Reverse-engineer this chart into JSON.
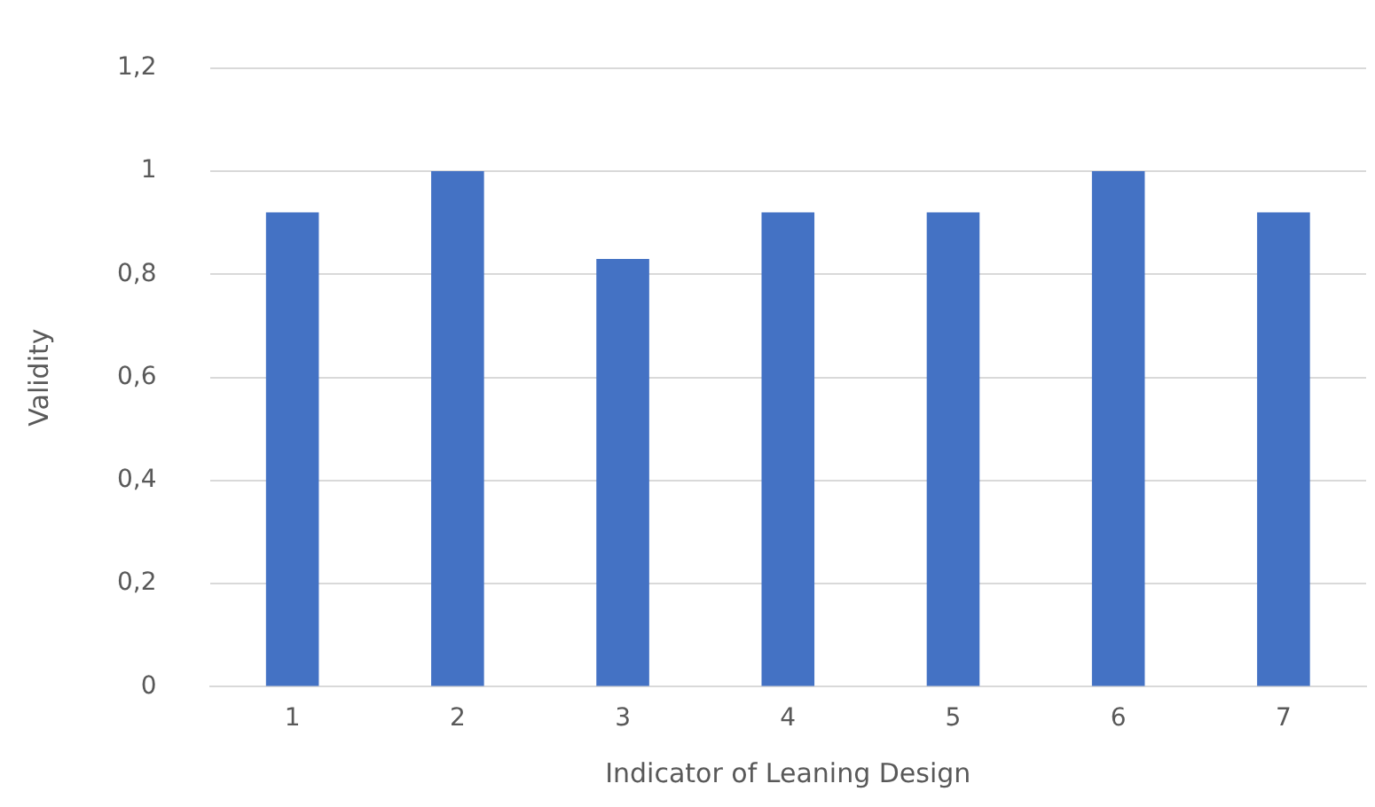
{
  "chart_data": {
    "type": "bar",
    "xlabel": "Indicator of Leaning Design",
    "ylabel": "Validity",
    "categories": [
      "1",
      "2",
      "3",
      "4",
      "5",
      "6",
      "7"
    ],
    "values": [
      0.92,
      1,
      0.83,
      0.92,
      0.92,
      1,
      0.92
    ],
    "color": "#4472c4",
    "ylim": [
      0,
      1.2
    ],
    "yticks": [
      0,
      {
        "value": 0.2,
        "label": "0,2"
      },
      {
        "value": 0.4,
        "label": "0,4"
      },
      {
        "value": 0.6,
        "label": "0,6"
      },
      {
        "value": 0.8,
        "label": "0,8"
      },
      1,
      {
        "value": 1.2,
        "label": "1,2"
      }
    ],
    "grid": "y",
    "legend": false
  }
}
